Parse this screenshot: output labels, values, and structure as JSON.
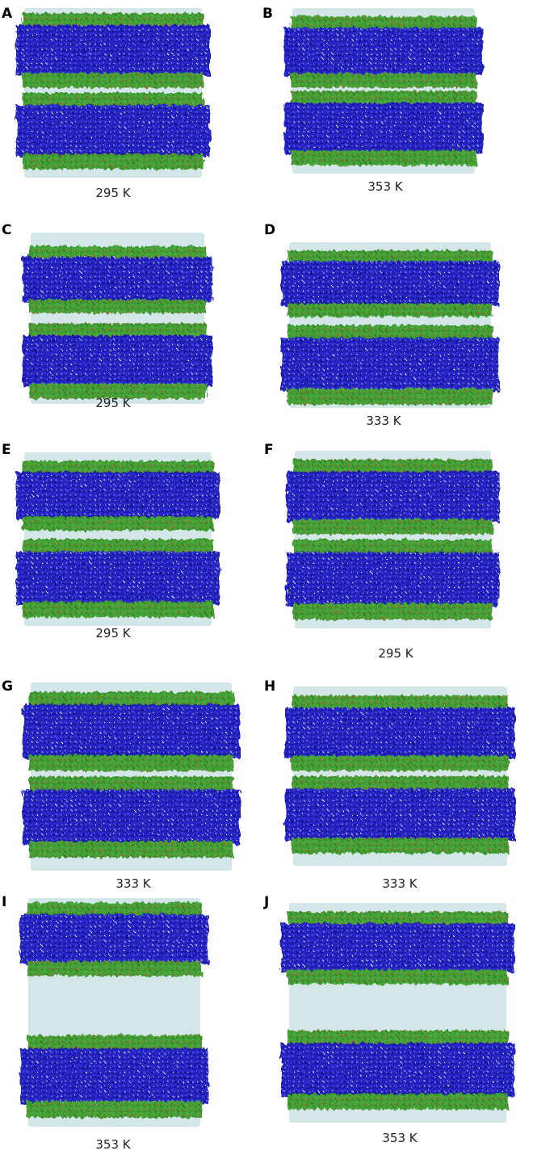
{
  "panels": [
    {
      "label": "A",
      "caption": "295 K"
    },
    {
      "label": "B",
      "caption": "353 K"
    },
    {
      "label": "C",
      "caption": "295 K"
    },
    {
      "label": "D",
      "caption": "333 K"
    },
    {
      "label": "E",
      "caption": "295 K"
    },
    {
      "label": "F",
      "caption": "295 K"
    },
    {
      "label": "G",
      "caption": "333 K"
    },
    {
      "label": "H",
      "caption": "333 K"
    },
    {
      "label": "I",
      "caption": "353 K"
    },
    {
      "label": "J",
      "caption": "353 K"
    }
  ]
}
